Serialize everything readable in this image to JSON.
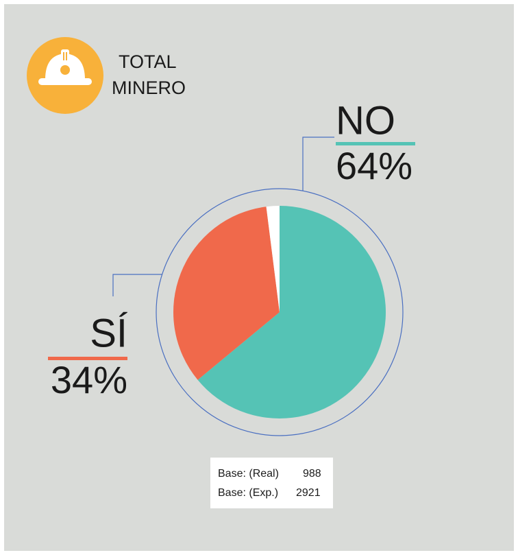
{
  "chart_data": {
    "type": "pie",
    "title": [
      "TOTAL",
      "MINERO"
    ],
    "categories": [
      "NO",
      "SÍ",
      null
    ],
    "values": [
      64,
      34,
      2
    ],
    "value_labels": [
      "64%",
      "34%",
      null
    ],
    "colors": [
      "#55c3b5",
      "#f0694b",
      "#ffffff"
    ],
    "base": [
      {
        "label": "Base: (Real)",
        "value": 988
      },
      {
        "label": "Base: (Exp.)",
        "value": 2921
      }
    ]
  }
}
